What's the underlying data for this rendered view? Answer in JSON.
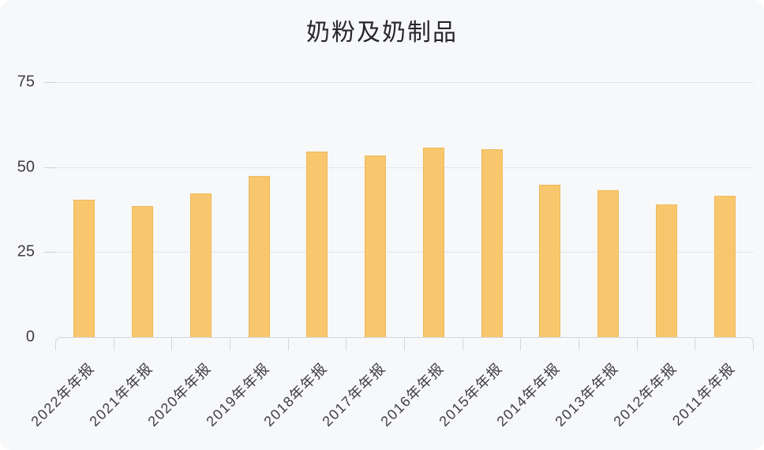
{
  "page": {
    "background": "#ffffff",
    "card_background": "#f7f8fa"
  },
  "chart_data": {
    "type": "bar",
    "title": "奶粉及奶制品",
    "categories": [
      "2022年年报",
      "2021年年报",
      "2020年年报",
      "2019年年报",
      "2018年年报",
      "2017年年报",
      "2016年年报",
      "2015年年报",
      "2014年年报",
      "2013年年报",
      "2012年年报",
      "2011年年报"
    ],
    "values": [
      40.4,
      38.6,
      42.3,
      47.4,
      54.5,
      53.5,
      55.7,
      55.2,
      44.8,
      43.1,
      39.0,
      41.6
    ],
    "yticks": [
      "75",
      "50",
      "25",
      "0"
    ],
    "ylim": [
      0,
      75
    ],
    "xlabel": "",
    "ylabel": "",
    "grid": true,
    "legend": false,
    "colors": {
      "bar": "#f8c76d",
      "grid": "#e2e4e9",
      "axis": "#d2d6dc",
      "text": "#3e3e44",
      "title": "#26262b"
    }
  }
}
